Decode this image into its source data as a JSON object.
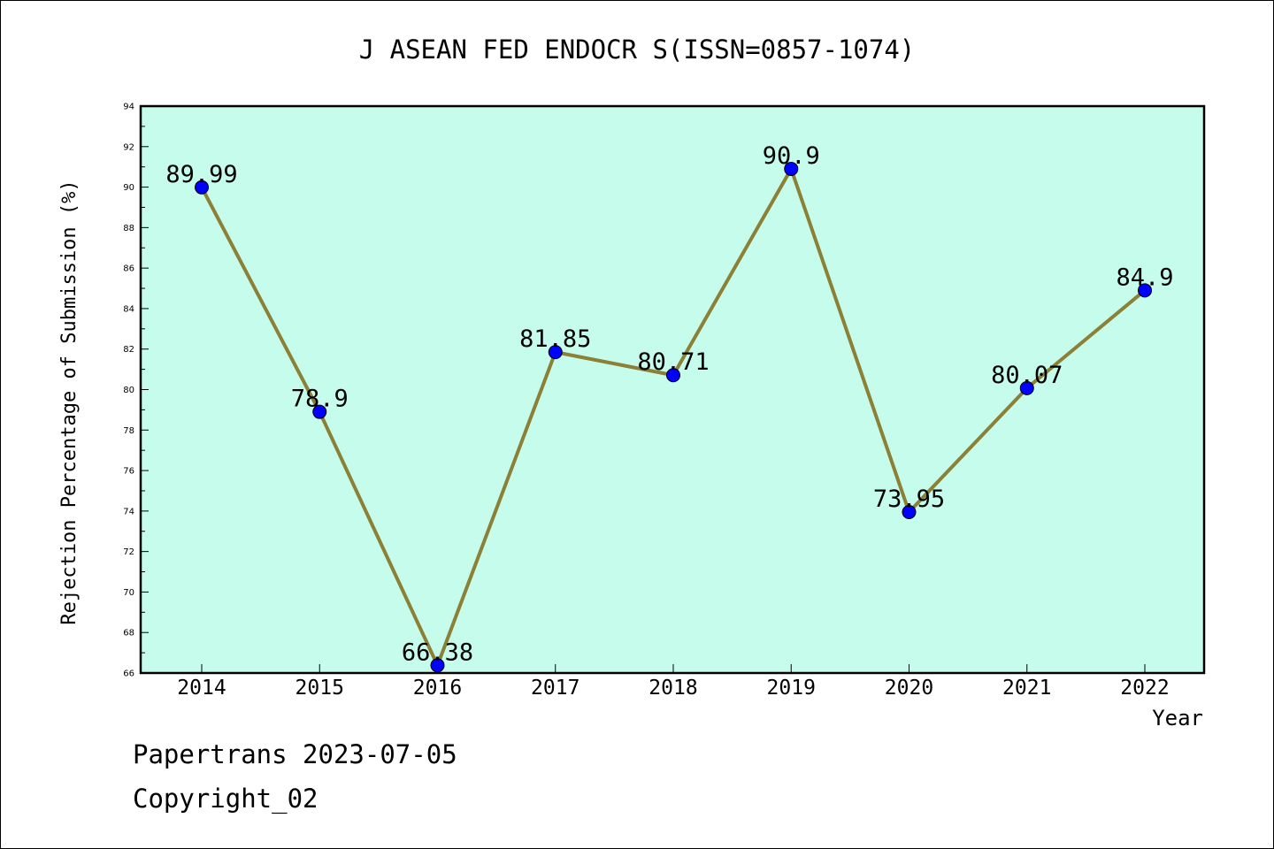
{
  "chart_data": {
    "type": "line",
    "title": "J ASEAN FED ENDOCR S(ISSN=0857-1074)",
    "xlabel": "Year",
    "ylabel": "Rejection Percentage of Submission (%)",
    "categories": [
      "2014",
      "2015",
      "2016",
      "2017",
      "2018",
      "2019",
      "2020",
      "2021",
      "2022"
    ],
    "series": [
      {
        "values": [
          89.99,
          78.9,
          66.38,
          81.85,
          80.71,
          90.9,
          73.95,
          80.07,
          84.9
        ],
        "labels": [
          "89.99",
          "78.9",
          "66.38",
          "81.85",
          "80.71",
          "90.9",
          "73.95",
          "80.07",
          "84.9"
        ]
      }
    ],
    "ylim": [
      66,
      94
    ],
    "y_ticks": [
      "66",
      "68",
      "70",
      "72",
      "74",
      "76",
      "78",
      "80",
      "82",
      "84",
      "86",
      "88",
      "90",
      "92",
      "94"
    ],
    "grid": false,
    "colors": {
      "plot_background": "#c6fcec",
      "line": "#8b8035",
      "marker": "#0000ff"
    }
  },
  "footer": {
    "line1": "Papertrans 2023-07-05",
    "line2": "Copyright_02"
  }
}
